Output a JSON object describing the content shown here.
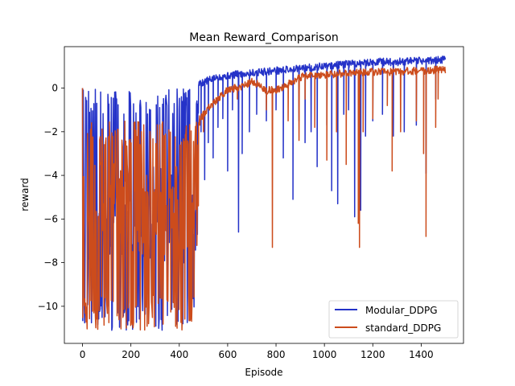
{
  "chart_data": {
    "type": "line",
    "title": "Mean Reward_Comparison",
    "xlabel": "Episode",
    "ylabel": "reward",
    "xlim": [
      -75,
      1575
    ],
    "ylim": [
      -11.7,
      1.9
    ],
    "xticks": [
      0,
      200,
      400,
      600,
      800,
      1000,
      1200,
      1400
    ],
    "yticks": [
      -10,
      -8,
      -6,
      -4,
      -2,
      0
    ],
    "legend_position": "lower right",
    "grid": false,
    "series": [
      {
        "name": "Modular_DDPG",
        "color": "#2432c8",
        "segments": [
          {
            "x": [
              0,
              480
            ],
            "min": -11.1,
            "max": 0.0,
            "baseline": -5.8,
            "seed": 11
          },
          {
            "x": [
              480,
              1500
            ],
            "trend_x": [
              480,
              560,
              620,
              700,
              800,
              900,
              1000,
              1100,
              1200,
              1300,
              1400,
              1500
            ],
            "trend_y": [
              0.2,
              0.5,
              0.6,
              0.7,
              0.8,
              0.9,
              1.0,
              1.1,
              1.2,
              1.2,
              1.25,
              1.3
            ],
            "seed": 5
          }
        ],
        "dips": [
          [
            490,
            -2.0
          ],
          [
            505,
            -4.2
          ],
          [
            520,
            -2.5
          ],
          [
            540,
            -3.2
          ],
          [
            560,
            -1.8
          ],
          [
            580,
            -1.4
          ],
          [
            600,
            -3.8
          ],
          [
            620,
            -1.0
          ],
          [
            645,
            -6.6
          ],
          [
            660,
            -3.0
          ],
          [
            690,
            -2.0
          ],
          [
            720,
            -1.2
          ],
          [
            760,
            -1.5
          ],
          [
            800,
            -1.0
          ],
          [
            830,
            -3.2
          ],
          [
            870,
            -5.1
          ],
          [
            895,
            -1.5
          ],
          [
            920,
            -2.5
          ],
          [
            945,
            -2.0
          ],
          [
            970,
            -3.6
          ],
          [
            1010,
            -1.7
          ],
          [
            1030,
            -4.7
          ],
          [
            1055,
            -5.3
          ],
          [
            1080,
            -1.2
          ],
          [
            1100,
            -1.0
          ],
          [
            1125,
            -5.9
          ],
          [
            1150,
            -5.6
          ],
          [
            1170,
            -2.2
          ],
          [
            1200,
            -1.5
          ],
          [
            1240,
            -1.2
          ],
          [
            1285,
            -2.2
          ],
          [
            1330,
            -2.0
          ],
          [
            1380,
            -1.7
          ],
          [
            1420,
            -3.9
          ],
          [
            1460,
            -0.5
          ]
        ]
      },
      {
        "name": "standard_DDPG",
        "color": "#cc4c1c",
        "segments": [
          {
            "x": [
              0,
              480
            ],
            "min": -11.1,
            "max": -1.5,
            "baseline": -5.5,
            "seed": 23
          },
          {
            "x": [
              480,
              1500
            ],
            "trend_x": [
              480,
              520,
              560,
              600,
              660,
              700,
              720,
              760,
              800,
              850,
              900,
              950,
              1000,
              1100,
              1200,
              1300,
              1400,
              1500
            ],
            "trend_y": [
              -1.5,
              -0.9,
              -0.5,
              -0.1,
              0.1,
              0.3,
              0.2,
              -0.1,
              -0.1,
              0.2,
              0.5,
              0.6,
              0.6,
              0.7,
              0.75,
              0.75,
              0.8,
              0.85
            ],
            "seed": 9
          }
        ],
        "dips": [
          [
            485,
            -1.7
          ],
          [
            500,
            -2.0
          ],
          [
            530,
            -0.9
          ],
          [
            640,
            -0.5
          ],
          [
            760,
            -1.0
          ],
          [
            785,
            -7.3
          ],
          [
            850,
            -1.5
          ],
          [
            895,
            -2.4
          ],
          [
            920,
            -0.5
          ],
          [
            960,
            -1.8
          ],
          [
            1010,
            -3.3
          ],
          [
            1050,
            -2.0
          ],
          [
            1090,
            -3.5
          ],
          [
            1140,
            -6.2
          ],
          [
            1145,
            -7.3
          ],
          [
            1160,
            -2.0
          ],
          [
            1200,
            -1.4
          ],
          [
            1260,
            -0.8
          ],
          [
            1280,
            -3.8
          ],
          [
            1315,
            -2.0
          ],
          [
            1380,
            -1.5
          ],
          [
            1410,
            -3.0
          ],
          [
            1420,
            -6.8
          ],
          [
            1460,
            -1.8
          ],
          [
            1470,
            -0.5
          ]
        ]
      }
    ]
  }
}
